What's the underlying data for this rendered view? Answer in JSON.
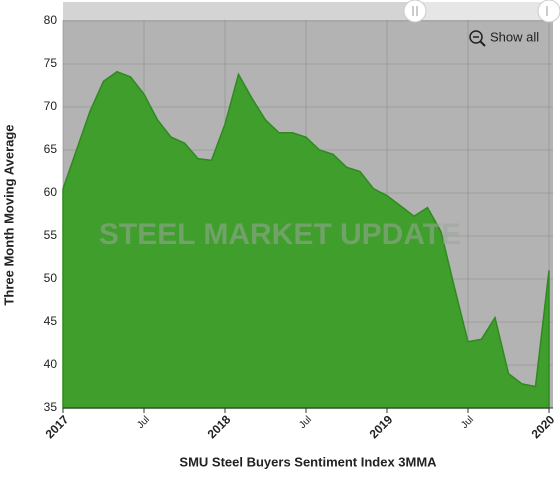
{
  "chart_data": {
    "type": "area",
    "x_label": "SMU Steel Buyers Sentiment Index 3MMA",
    "y_label": "Three Month Moving Average",
    "watermark": "STEEL MARKET UPDATE",
    "button": "Show all",
    "x": [
      "2017-01",
      "2017-02",
      "2017-03",
      "2017-04",
      "2017-05",
      "2017-06",
      "2017-07",
      "2017-08",
      "2017-09",
      "2017-10",
      "2017-11",
      "2017-12",
      "2018-01",
      "2018-02",
      "2018-03",
      "2018-04",
      "2018-05",
      "2018-06",
      "2018-07",
      "2018-08",
      "2018-09",
      "2018-10",
      "2018-11",
      "2018-12",
      "2019-01",
      "2019-02",
      "2019-03",
      "2019-04",
      "2019-05",
      "2019-06",
      "2019-07",
      "2019-08",
      "2019-09",
      "2019-10",
      "2019-11",
      "2019-12",
      "2020-01"
    ],
    "series": [
      {
        "name": "SMU Steel Buyers Sentiment Index 3MMA",
        "color": "#3f9e2c",
        "values": [
          60.5,
          65,
          69.5,
          73,
          74.1,
          73.5,
          71.5,
          68.5,
          66.5,
          65.8,
          64,
          63.8,
          68,
          73.8,
          71,
          68.5,
          67,
          67,
          66.5,
          65,
          64.5,
          63,
          62.5,
          60.5,
          59.7,
          58.5,
          57.3,
          58.3,
          55.5,
          49,
          42.7,
          43,
          45.5,
          39,
          37.8,
          37.5,
          51
        ]
      }
    ],
    "ylim": [
      35,
      80
    ],
    "yticks": [
      35,
      40,
      45,
      50,
      55,
      60,
      65,
      70,
      75,
      80
    ],
    "xticks": [
      {
        "value": "2017-01",
        "label": "2017"
      },
      {
        "value": "2017-07",
        "label": "Jul"
      },
      {
        "value": "2018-01",
        "label": "2018"
      },
      {
        "value": "2018-07",
        "label": "Jul"
      },
      {
        "value": "2019-01",
        "label": "2019"
      },
      {
        "value": "2019-07",
        "label": "Jul"
      },
      {
        "value": "2020-01",
        "label": "2020"
      }
    ],
    "grid": true
  }
}
